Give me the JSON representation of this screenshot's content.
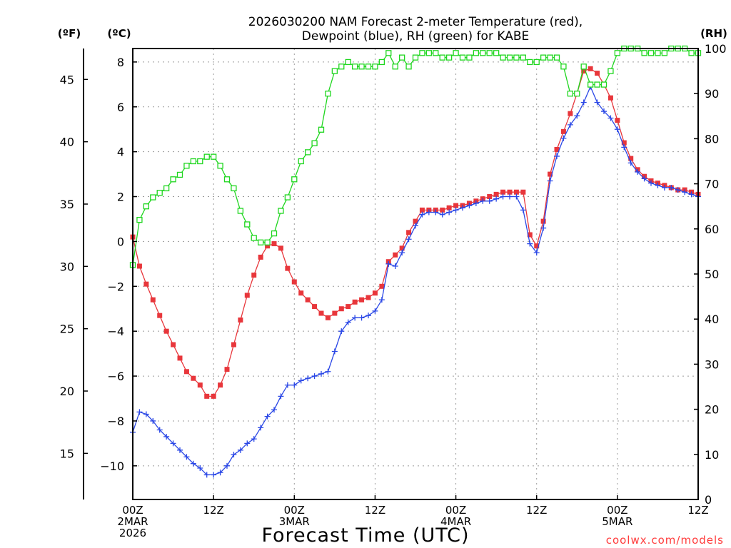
{
  "chart_data": {
    "type": "line",
    "title_line1": "2026030200 NAM Forecast 2-meter Temperature (red),",
    "title_line2": "Dewpoint (blue), RH (green) for KABE",
    "xlabel": "Forecast Time (UTC)",
    "credit": "coolwx.com/models",
    "left_outer_unit": "(ºF)",
    "left_inner_unit": "(ºC)",
    "right_unit": "(RH)",
    "x_range_hours": [
      0,
      84
    ],
    "y_celsius_range": [
      -11.5,
      8.6
    ],
    "y_fahrenheit_range": [
      11.3,
      47.48
    ],
    "y_rh_range": [
      0,
      100
    ],
    "grid": true,
    "x_ticks": [
      {
        "hour": 0,
        "lines": [
          "00Z",
          "2MAR",
          "2026"
        ]
      },
      {
        "hour": 12,
        "lines": [
          "12Z"
        ]
      },
      {
        "hour": 24,
        "lines": [
          "00Z",
          "3MAR"
        ]
      },
      {
        "hour": 36,
        "lines": [
          "12Z"
        ]
      },
      {
        "hour": 48,
        "lines": [
          "00Z",
          "4MAR"
        ]
      },
      {
        "hour": 60,
        "lines": [
          "12Z"
        ]
      },
      {
        "hour": 72,
        "lines": [
          "00Z",
          "5MAR"
        ]
      },
      {
        "hour": 84,
        "lines": [
          "12Z"
        ]
      }
    ],
    "y_ticks_celsius": [
      "−10",
      "−8",
      "−6",
      "−4",
      "−2",
      "0",
      "2",
      "4",
      "6",
      "8"
    ],
    "y_ticks_fahrenheit": [
      "15",
      "20",
      "25",
      "30",
      "35",
      "40",
      "45"
    ],
    "y_ticks_rh": [
      "0",
      "10",
      "20",
      "30",
      "40",
      "50",
      "60",
      "70",
      "80",
      "90",
      "100"
    ],
    "series": [
      {
        "key": "temperature",
        "unit": "C",
        "color": "#e8363b",
        "marker": "filled-square",
        "points": [
          [
            0,
            0.2
          ],
          [
            1,
            -1.1
          ],
          [
            2,
            -1.9
          ],
          [
            3,
            -2.6
          ],
          [
            4,
            -3.3
          ],
          [
            5,
            -4.0
          ],
          [
            6,
            -4.6
          ],
          [
            7,
            -5.2
          ],
          [
            8,
            -5.8
          ],
          [
            9,
            -6.1
          ],
          [
            10,
            -6.4
          ],
          [
            11,
            -6.9
          ],
          [
            12,
            -6.9
          ],
          [
            13,
            -6.4
          ],
          [
            14,
            -5.7
          ],
          [
            15,
            -4.6
          ],
          [
            16,
            -3.5
          ],
          [
            17,
            -2.4
          ],
          [
            18,
            -1.5
          ],
          [
            19,
            -0.7
          ],
          [
            20,
            -0.2
          ],
          [
            21,
            -0.1
          ],
          [
            22,
            -0.3
          ],
          [
            23,
            -1.2
          ],
          [
            24,
            -1.8
          ],
          [
            25,
            -2.3
          ],
          [
            26,
            -2.6
          ],
          [
            27,
            -2.9
          ],
          [
            28,
            -3.2
          ],
          [
            29,
            -3.4
          ],
          [
            30,
            -3.2
          ],
          [
            31,
            -3.0
          ],
          [
            32,
            -2.9
          ],
          [
            33,
            -2.7
          ],
          [
            34,
            -2.6
          ],
          [
            35,
            -2.5
          ],
          [
            36,
            -2.3
          ],
          [
            37,
            -2.0
          ],
          [
            38,
            -0.9
          ],
          [
            39,
            -0.6
          ],
          [
            40,
            -0.3
          ],
          [
            41,
            0.4
          ],
          [
            42,
            0.9
          ],
          [
            43,
            1.4
          ],
          [
            44,
            1.4
          ],
          [
            45,
            1.4
          ],
          [
            46,
            1.4
          ],
          [
            47,
            1.5
          ],
          [
            48,
            1.6
          ],
          [
            49,
            1.6
          ],
          [
            50,
            1.7
          ],
          [
            51,
            1.8
          ],
          [
            52,
            1.9
          ],
          [
            53,
            2.0
          ],
          [
            54,
            2.1
          ],
          [
            55,
            2.2
          ],
          [
            56,
            2.2
          ],
          [
            57,
            2.2
          ],
          [
            58,
            2.2
          ],
          [
            59,
            0.3
          ],
          [
            60,
            -0.2
          ],
          [
            61,
            0.9
          ],
          [
            62,
            3.0
          ],
          [
            63,
            4.1
          ],
          [
            64,
            4.9
          ],
          [
            65,
            5.7
          ],
          [
            66,
            6.6
          ],
          [
            67,
            7.6
          ],
          [
            68,
            7.7
          ],
          [
            69,
            7.5
          ],
          [
            70,
            7.0
          ],
          [
            71,
            6.4
          ],
          [
            72,
            5.4
          ],
          [
            73,
            4.4
          ],
          [
            74,
            3.7
          ],
          [
            75,
            3.2
          ],
          [
            76,
            2.9
          ],
          [
            77,
            2.7
          ],
          [
            78,
            2.6
          ],
          [
            79,
            2.5
          ],
          [
            80,
            2.4
          ],
          [
            81,
            2.3
          ],
          [
            82,
            2.3
          ],
          [
            83,
            2.2
          ],
          [
            84,
            2.1
          ]
        ]
      },
      {
        "key": "dewpoint",
        "unit": "C",
        "color": "#2a47e6",
        "marker": "plus",
        "points": [
          [
            0,
            -8.5
          ],
          [
            1,
            -7.6
          ],
          [
            2,
            -7.7
          ],
          [
            3,
            -8.0
          ],
          [
            4,
            -8.4
          ],
          [
            5,
            -8.7
          ],
          [
            6,
            -9.0
          ],
          [
            7,
            -9.3
          ],
          [
            8,
            -9.6
          ],
          [
            9,
            -9.9
          ],
          [
            10,
            -10.1
          ],
          [
            11,
            -10.4
          ],
          [
            12,
            -10.4
          ],
          [
            13,
            -10.3
          ],
          [
            14,
            -10.0
          ],
          [
            15,
            -9.5
          ],
          [
            16,
            -9.3
          ],
          [
            17,
            -9.0
          ],
          [
            18,
            -8.8
          ],
          [
            19,
            -8.3
          ],
          [
            20,
            -7.8
          ],
          [
            21,
            -7.5
          ],
          [
            22,
            -6.9
          ],
          [
            23,
            -6.4
          ],
          [
            24,
            -6.4
          ],
          [
            25,
            -6.2
          ],
          [
            26,
            -6.1
          ],
          [
            27,
            -6.0
          ],
          [
            28,
            -5.9
          ],
          [
            29,
            -5.8
          ],
          [
            30,
            -4.9
          ],
          [
            31,
            -4.0
          ],
          [
            32,
            -3.6
          ],
          [
            33,
            -3.4
          ],
          [
            34,
            -3.4
          ],
          [
            35,
            -3.3
          ],
          [
            36,
            -3.1
          ],
          [
            37,
            -2.6
          ],
          [
            38,
            -1.0
          ],
          [
            39,
            -1.1
          ],
          [
            40,
            -0.5
          ],
          [
            41,
            0.1
          ],
          [
            42,
            0.7
          ],
          [
            43,
            1.2
          ],
          [
            44,
            1.3
          ],
          [
            45,
            1.3
          ],
          [
            46,
            1.2
          ],
          [
            47,
            1.3
          ],
          [
            48,
            1.4
          ],
          [
            49,
            1.5
          ],
          [
            50,
            1.6
          ],
          [
            51,
            1.7
          ],
          [
            52,
            1.8
          ],
          [
            53,
            1.8
          ],
          [
            54,
            1.9
          ],
          [
            55,
            2.0
          ],
          [
            56,
            2.0
          ],
          [
            57,
            2.0
          ],
          [
            58,
            1.4
          ],
          [
            59,
            -0.1
          ],
          [
            60,
            -0.5
          ],
          [
            61,
            0.6
          ],
          [
            62,
            2.7
          ],
          [
            63,
            3.8
          ],
          [
            64,
            4.6
          ],
          [
            65,
            5.2
          ],
          [
            66,
            5.6
          ],
          [
            67,
            6.2
          ],
          [
            68,
            6.9
          ],
          [
            69,
            6.2
          ],
          [
            70,
            5.8
          ],
          [
            71,
            5.5
          ],
          [
            72,
            5.0
          ],
          [
            73,
            4.2
          ],
          [
            74,
            3.5
          ],
          [
            75,
            3.1
          ],
          [
            76,
            2.8
          ],
          [
            77,
            2.6
          ],
          [
            78,
            2.5
          ],
          [
            79,
            2.4
          ],
          [
            80,
            2.4
          ],
          [
            81,
            2.3
          ],
          [
            82,
            2.2
          ],
          [
            83,
            2.1
          ],
          [
            84,
            2.0
          ]
        ]
      },
      {
        "key": "rh",
        "unit": "%",
        "color": "#1fd61f",
        "marker": "open-square",
        "points": [
          [
            0,
            52
          ],
          [
            1,
            62
          ],
          [
            2,
            65
          ],
          [
            3,
            67
          ],
          [
            4,
            68
          ],
          [
            5,
            69
          ],
          [
            6,
            71
          ],
          [
            7,
            72
          ],
          [
            8,
            74
          ],
          [
            9,
            75
          ],
          [
            10,
            75
          ],
          [
            11,
            76
          ],
          [
            12,
            76
          ],
          [
            13,
            74
          ],
          [
            14,
            71
          ],
          [
            15,
            69
          ],
          [
            16,
            64
          ],
          [
            17,
            61
          ],
          [
            18,
            58
          ],
          [
            19,
            57
          ],
          [
            20,
            57
          ],
          [
            21,
            59
          ],
          [
            22,
            64
          ],
          [
            23,
            67
          ],
          [
            24,
            71
          ],
          [
            25,
            75
          ],
          [
            26,
            77
          ],
          [
            27,
            79
          ],
          [
            28,
            82
          ],
          [
            29,
            90
          ],
          [
            30,
            95
          ],
          [
            31,
            96
          ],
          [
            32,
            97
          ],
          [
            33,
            96
          ],
          [
            34,
            96
          ],
          [
            35,
            96
          ],
          [
            36,
            96
          ],
          [
            37,
            97
          ],
          [
            38,
            99
          ],
          [
            39,
            96
          ],
          [
            40,
            98
          ],
          [
            41,
            96
          ],
          [
            42,
            98
          ],
          [
            43,
            99
          ],
          [
            44,
            99
          ],
          [
            45,
            99
          ],
          [
            46,
            98
          ],
          [
            47,
            98
          ],
          [
            48,
            99
          ],
          [
            49,
            98
          ],
          [
            50,
            98
          ],
          [
            51,
            99
          ],
          [
            52,
            99
          ],
          [
            53,
            99
          ],
          [
            54,
            99
          ],
          [
            55,
            98
          ],
          [
            56,
            98
          ],
          [
            57,
            98
          ],
          [
            58,
            98
          ],
          [
            59,
            97
          ],
          [
            60,
            97
          ],
          [
            61,
            98
          ],
          [
            62,
            98
          ],
          [
            63,
            98
          ],
          [
            64,
            96
          ],
          [
            65,
            90
          ],
          [
            66,
            90
          ],
          [
            67,
            96
          ],
          [
            68,
            92
          ],
          [
            69,
            92
          ],
          [
            70,
            92
          ],
          [
            71,
            95
          ],
          [
            72,
            99
          ],
          [
            73,
            100
          ],
          [
            74,
            100
          ],
          [
            75,
            100
          ],
          [
            76,
            99
          ],
          [
            77,
            99
          ],
          [
            78,
            99
          ],
          [
            79,
            99
          ],
          [
            80,
            100
          ],
          [
            81,
            100
          ],
          [
            82,
            100
          ],
          [
            83,
            99
          ],
          [
            84,
            99
          ]
        ]
      }
    ]
  }
}
